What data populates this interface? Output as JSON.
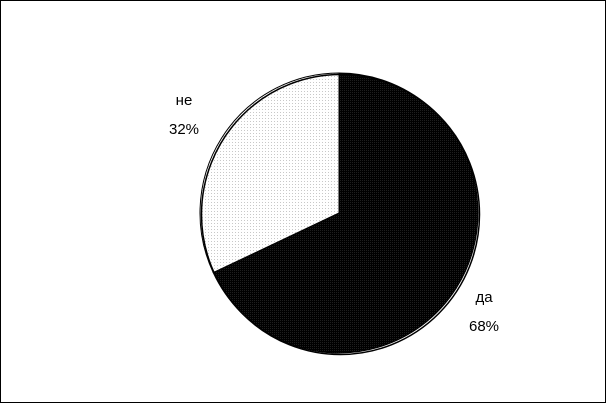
{
  "chart_data": {
    "type": "pie",
    "title": "",
    "slices": [
      {
        "label": "да",
        "value": 68,
        "value_label": "68%",
        "color": "#000000"
      },
      {
        "label": "не",
        "value": 32,
        "value_label": "32%",
        "color": "#ffffff"
      }
    ],
    "outline_color": "#000000",
    "start_direction": "top",
    "direction": "clockwise"
  }
}
